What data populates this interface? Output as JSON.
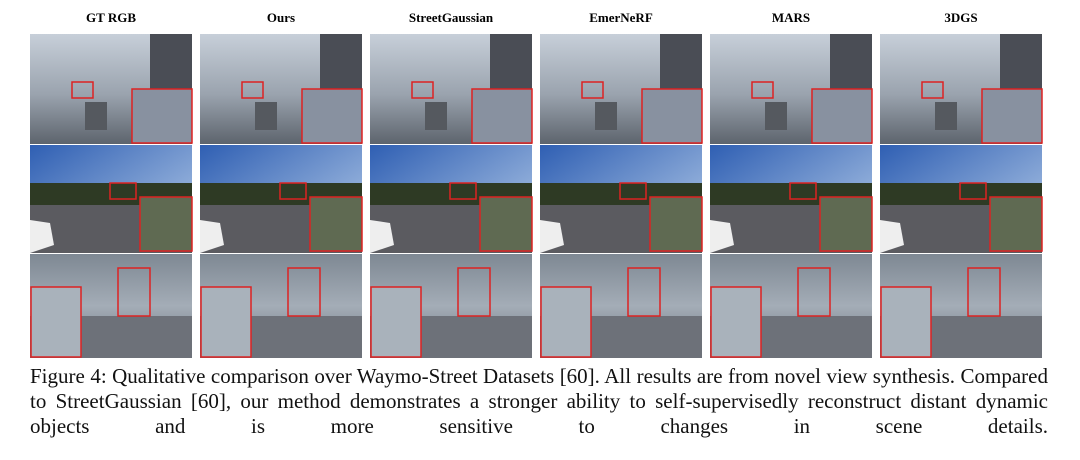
{
  "columns": [
    "GT RGB",
    "Ours",
    "StreetGaussian",
    "EmerNeRF",
    "MARS",
    "3DGS"
  ],
  "caption": "Figure 4: Qualitative comparison over Waymo-Street Datasets [60]. All results are from novel view synthesis. Compared to StreetGaussian [60], our method demonstrates a stronger ability to self-supervisedly reconstruct distant dynamic objects and is more sensitive to changes in scene details."
}
